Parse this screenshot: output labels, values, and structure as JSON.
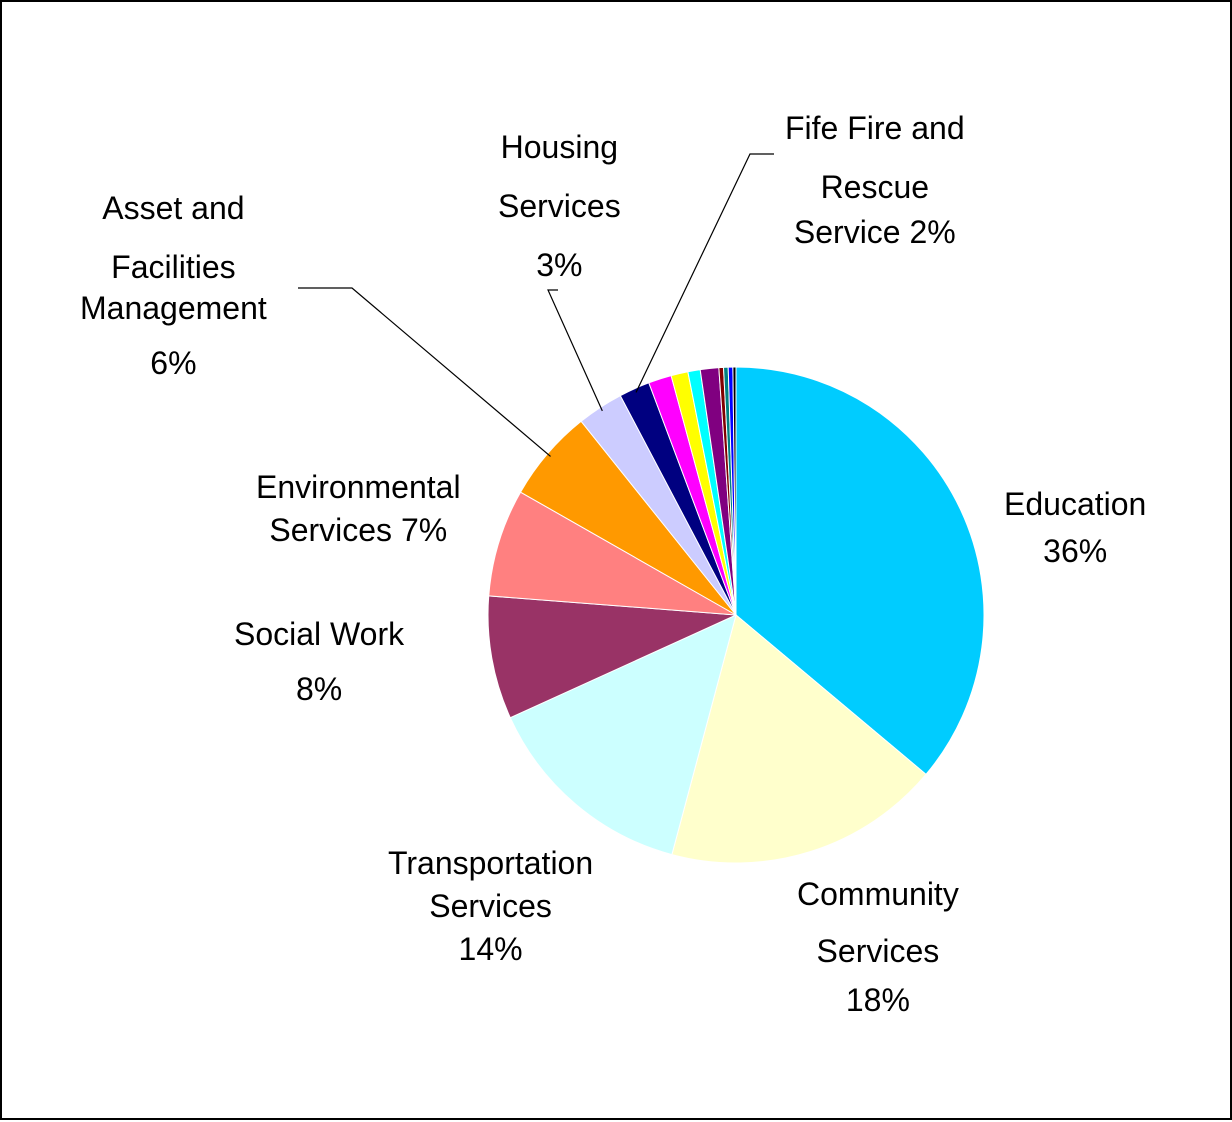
{
  "chart_data": {
    "type": "pie",
    "title": "",
    "start": "12 o'clock",
    "direction": "clockwise",
    "slices": [
      {
        "name": "Education",
        "value": 36,
        "label_lines": [
          "Education",
          "36%"
        ],
        "color": "#00CCFF"
      },
      {
        "name": "Community Services",
        "value": 18,
        "label_lines": [
          "Community",
          "Services",
          "18%"
        ],
        "color": "#FFFFCC"
      },
      {
        "name": "Transportation Services",
        "value": 14,
        "label_lines": [
          "Transportation",
          "Services",
          "14%"
        ],
        "color": "#CCFFFF"
      },
      {
        "name": "Social Work",
        "value": 8,
        "label_lines": [
          "Social Work",
          "8%"
        ],
        "color": "#993366"
      },
      {
        "name": "Environmental Services",
        "value": 7,
        "label_lines": [
          "Environmental",
          "Services 7%"
        ],
        "color": "#FF8080"
      },
      {
        "name": "Asset and Facilities Management",
        "value": 6,
        "label_lines": [
          "Asset and",
          "Facilities",
          "Management",
          "6%"
        ],
        "color": "#FF9900"
      },
      {
        "name": "Housing Services",
        "value": 3,
        "label_lines": [
          "Housing",
          "Services",
          "3%"
        ],
        "color": "#CCCCFF"
      },
      {
        "name": "Fife Fire and Rescue Service",
        "value": 2,
        "label_lines": [
          "Fife Fire and",
          "Rescue",
          "Service 2%"
        ],
        "color": "#000080"
      },
      {
        "name": "",
        "value": 1.5,
        "label_lines": [],
        "color": "#FF00FF"
      },
      {
        "name": "",
        "value": 1.1,
        "label_lines": [],
        "color": "#FFFF00"
      },
      {
        "name": "",
        "value": 0.8,
        "label_lines": [],
        "color": "#00FFFF"
      },
      {
        "name": "",
        "value": 1.2,
        "label_lines": [],
        "color": "#800080"
      },
      {
        "name": "",
        "value": 0.3,
        "label_lines": [],
        "color": "#800000"
      },
      {
        "name": "",
        "value": 0.3,
        "label_lines": [],
        "color": "#008080"
      },
      {
        "name": "",
        "value": 0.3,
        "label_lines": [],
        "color": "#0000FF"
      },
      {
        "name": "",
        "value": 0.2,
        "label_lines": [],
        "color": "#000000"
      }
    ]
  }
}
